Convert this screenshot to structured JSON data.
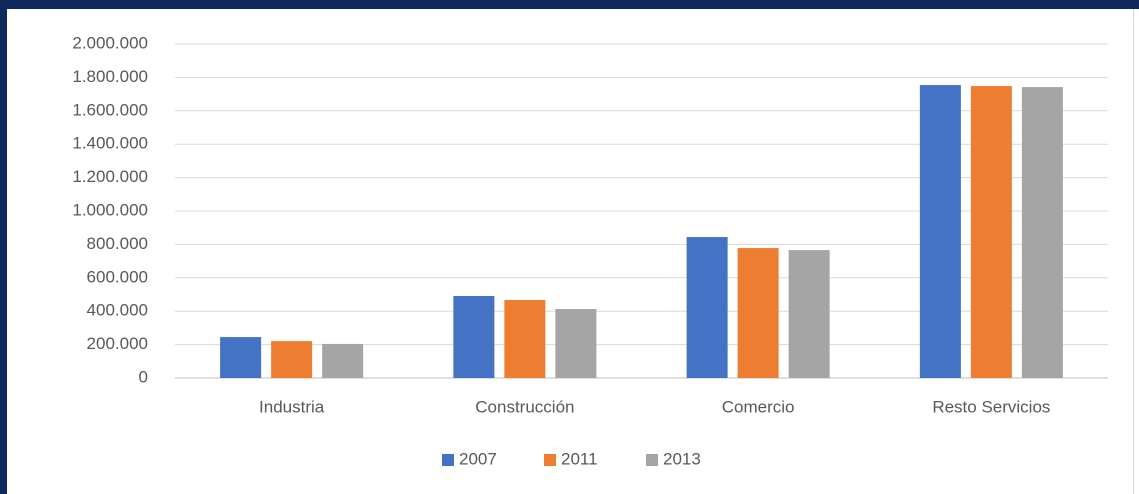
{
  "chart_data": {
    "type": "bar",
    "categories": [
      "Industria",
      "Construcción",
      "Comercio",
      "Resto Servicios"
    ],
    "series": [
      {
        "name": "2007",
        "color": "#4472c4",
        "values": [
          245000,
          491000,
          844000,
          1754000
        ]
      },
      {
        "name": "2011",
        "color": "#ed7d31",
        "values": [
          221000,
          467000,
          778000,
          1748000
        ]
      },
      {
        "name": "2013",
        "color": "#a5a5a5",
        "values": [
          204000,
          413000,
          766000,
          1742000
        ]
      }
    ],
    "ylim": [
      0,
      2000000
    ],
    "yticks": [
      0,
      {
        "value": 200000,
        "label": "200.000"
      },
      {
        "value": 400000,
        "label": "400.000"
      },
      {
        "value": 600000,
        "label": "600.000"
      },
      {
        "value": 800000,
        "label": "800.000"
      },
      {
        "value": 1000000,
        "label": "1.000.000"
      },
      {
        "value": 1200000,
        "label": "1.200.000"
      },
      {
        "value": 1400000,
        "label": "1.400.000"
      },
      {
        "value": 1600000,
        "label": "1.600.000"
      },
      {
        "value": 1800000,
        "label": "1.800.000"
      },
      {
        "value": 2000000,
        "label": "2.000.000"
      }
    ],
    "grid": true,
    "legend": "bottom"
  }
}
